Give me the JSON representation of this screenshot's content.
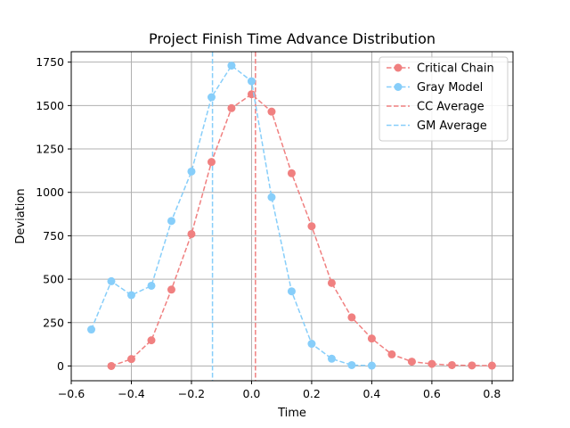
{
  "chart_data": {
    "type": "line",
    "title": "Project Finish Time Advance Distribution",
    "xlabel": "Time",
    "ylabel": "Deviation",
    "xlim": [
      -0.6,
      0.87
    ],
    "ylim": [
      -85,
      1810
    ],
    "xticks": [
      -0.6,
      -0.4,
      -0.2,
      0.0,
      0.2,
      0.4,
      0.6,
      0.8
    ],
    "xtick_labels": [
      "−0.6",
      "−0.4",
      "−0.2",
      "0.0",
      "0.2",
      "0.4",
      "0.6",
      "0.8"
    ],
    "yticks": [
      0,
      250,
      500,
      750,
      1000,
      1250,
      1500,
      1750
    ],
    "ytick_labels": [
      "0",
      "250",
      "500",
      "750",
      "1000",
      "1250",
      "1500",
      "1750"
    ],
    "grid": true,
    "legend_position": "top-right",
    "series": [
      {
        "name": "Critical Chain",
        "color": "#F08080",
        "style": "dashed-marker",
        "x": [
          -0.4667,
          -0.4,
          -0.3333,
          -0.2667,
          -0.2,
          -0.1333,
          -0.0667,
          0.0,
          0.0667,
          0.1333,
          0.2,
          0.2667,
          0.3333,
          0.4,
          0.4667,
          0.5333,
          0.6,
          0.6667,
          0.7333,
          0.8
        ],
        "y": [
          0,
          40,
          148,
          440,
          760,
          1175,
          1485,
          1565,
          1465,
          1110,
          805,
          478,
          280,
          158,
          67,
          25,
          12,
          5,
          3,
          2
        ]
      },
      {
        "name": "Gray Model",
        "color": "#87CEFA",
        "style": "dashed-marker",
        "x": [
          -0.5333,
          -0.4667,
          -0.4,
          -0.3333,
          -0.2667,
          -0.2,
          -0.1333,
          -0.0667,
          0.0,
          0.0667,
          0.1333,
          0.2,
          0.2667,
          0.3333,
          0.4
        ],
        "y": [
          210,
          488,
          408,
          462,
          835,
          1120,
          1548,
          1730,
          1640,
          972,
          430,
          128,
          42,
          5,
          2
        ]
      }
    ],
    "vlines": [
      {
        "name": "CC Average",
        "color": "#F08080",
        "x": 0.013
      },
      {
        "name": "GM Average",
        "color": "#87CEFA",
        "x": -0.13
      }
    ]
  }
}
